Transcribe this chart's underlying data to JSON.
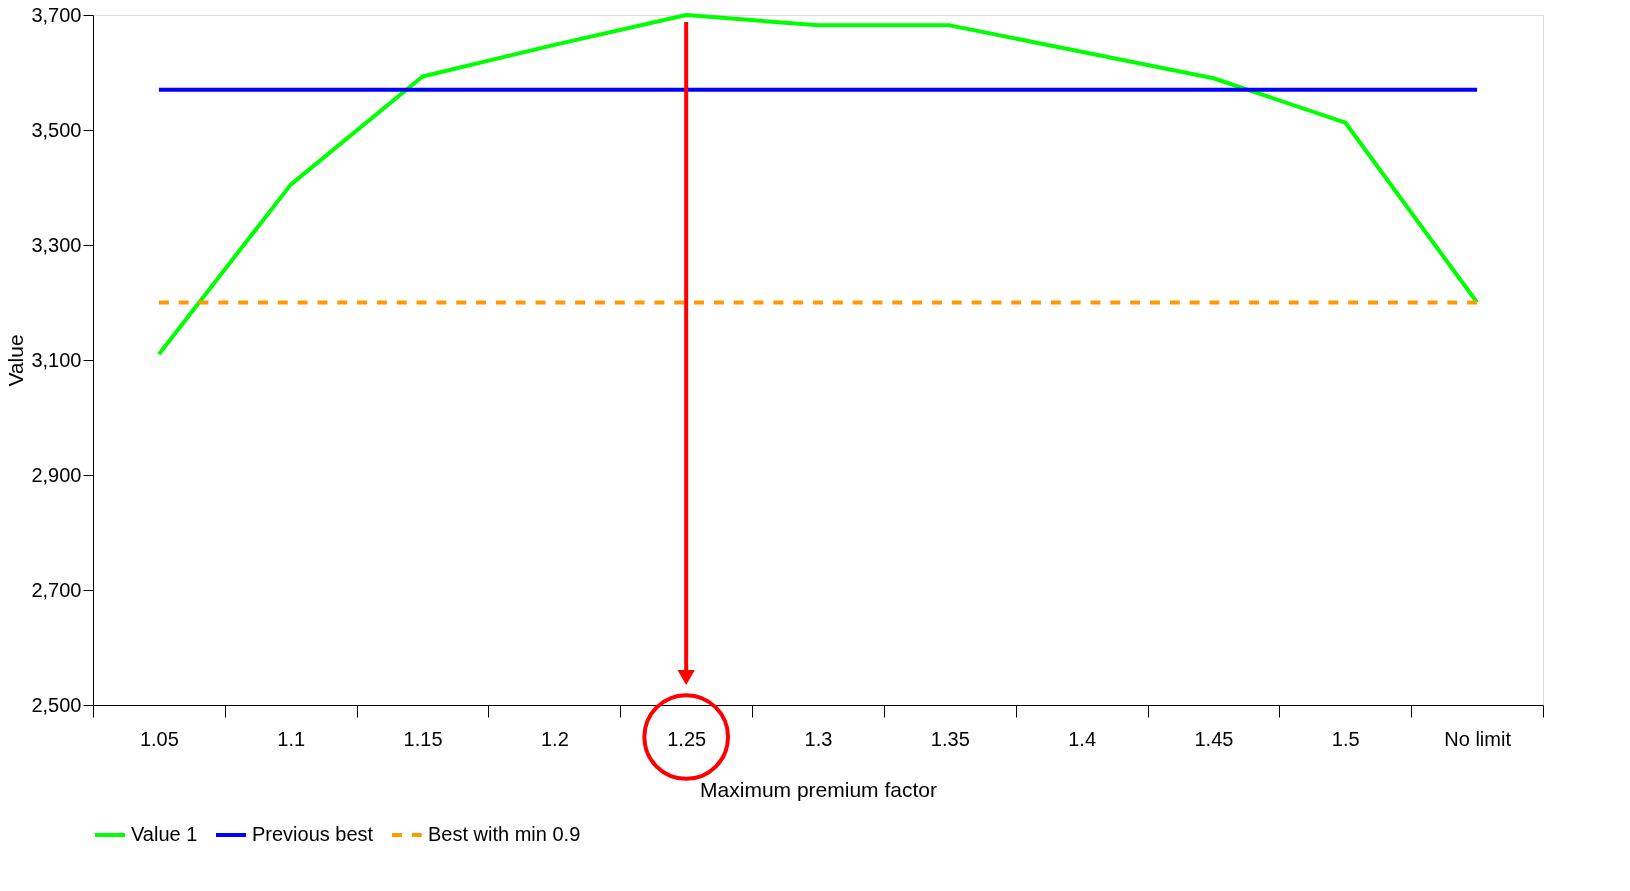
{
  "chart_data": {
    "type": "line",
    "xlabel": "Maximum premium factor",
    "ylabel": "Value",
    "categories": [
      "1.05",
      "1.1",
      "1.15",
      "1.2",
      "1.25",
      "1.3",
      "1.35",
      "1.4",
      "1.45",
      "1.5",
      "No limit"
    ],
    "series": [
      {
        "name": "Value 1",
        "color": "#00ff00",
        "line_style": "solid",
        "values": [
          3110,
          3405,
          3593,
          3648,
          3700,
          3682,
          3682,
          3636,
          3590,
          3513,
          3200
        ]
      },
      {
        "name": "Previous best",
        "color": "#0000ff",
        "line_style": "solid",
        "values": [
          3570,
          3570,
          3570,
          3570,
          3570,
          3570,
          3570,
          3570,
          3570,
          3570,
          3570
        ]
      },
      {
        "name": "Best with min 0.9",
        "color": "#ff9900",
        "line_style": "dashed",
        "values": [
          3200,
          3200,
          3200,
          3200,
          3200,
          3200,
          3200,
          3200,
          3200,
          3200,
          3200
        ]
      }
    ],
    "ylim": [
      2500,
      3700
    ],
    "yticks": [
      {
        "value": 2500,
        "label": "2,500"
      },
      {
        "value": 2700,
        "label": "2,700"
      },
      {
        "value": 2900,
        "label": "2,900"
      },
      {
        "value": 3100,
        "label": "3,100"
      },
      {
        "value": 3300,
        "label": "3,300"
      },
      {
        "value": 3500,
        "label": "3,500"
      },
      {
        "value": 3700,
        "label": "3,700"
      }
    ],
    "ref_lines": [
      {
        "axis": "x",
        "value": "1.25",
        "color": "#ff0000"
      }
    ],
    "grid": false,
    "legend": "bottom",
    "marker": "none"
  }
}
